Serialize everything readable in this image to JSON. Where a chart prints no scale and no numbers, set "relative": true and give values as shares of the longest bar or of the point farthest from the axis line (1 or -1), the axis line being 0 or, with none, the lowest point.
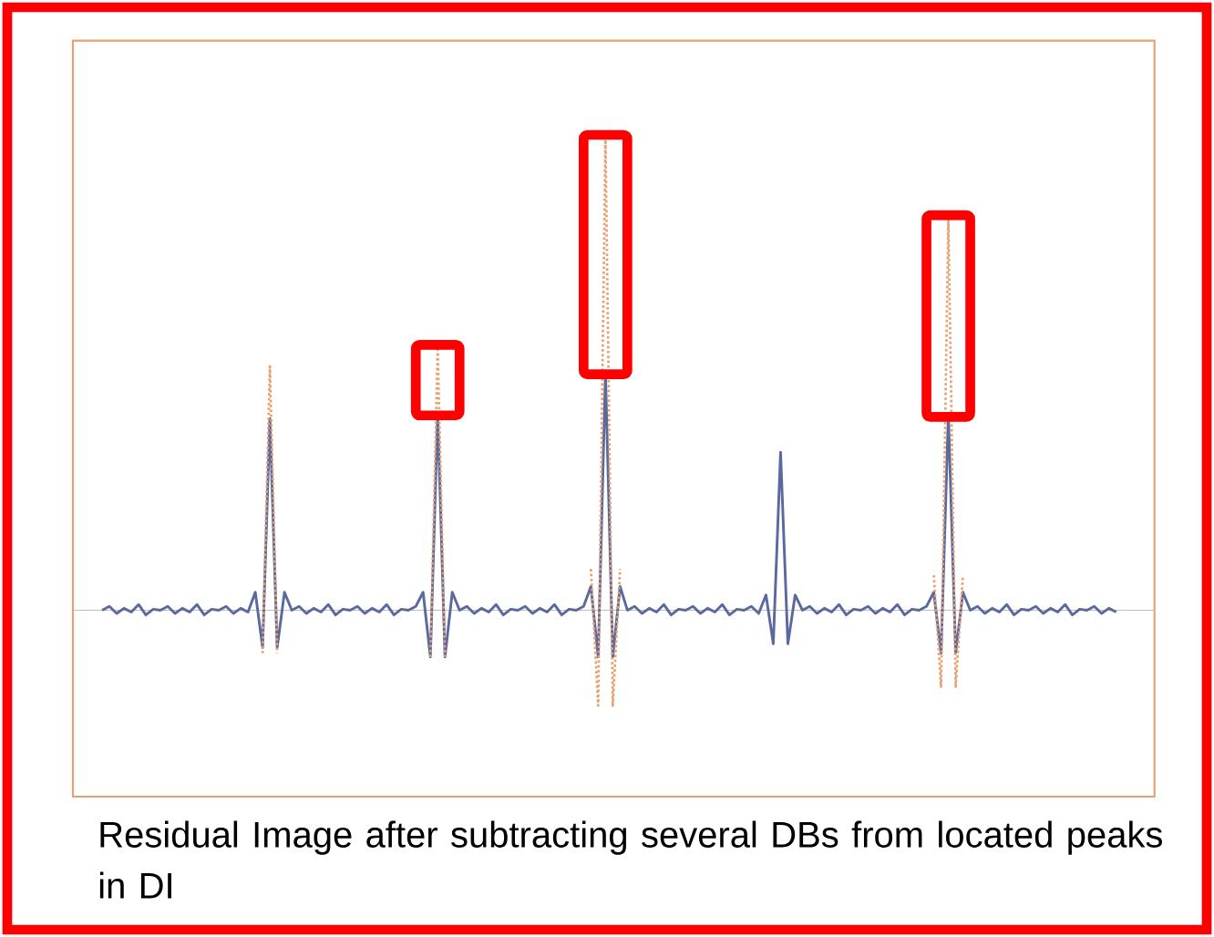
{
  "chart_data": {
    "type": "line",
    "relative": true,
    "marker": "none",
    "categories": [
      null,
      null,
      null,
      null,
      null,
      null,
      null,
      null,
      null,
      null,
      null,
      null,
      null,
      null,
      null,
      null,
      null,
      null,
      null,
      null,
      null,
      null,
      null,
      null,
      null,
      null,
      null,
      null,
      null,
      null,
      null,
      null,
      null,
      null,
      null,
      null,
      null,
      null,
      null,
      null,
      null,
      null,
      null,
      null,
      null,
      null,
      null,
      null,
      null,
      null,
      null,
      null,
      null,
      null,
      null,
      null,
      null,
      null,
      null,
      null,
      null,
      null,
      null,
      null,
      null,
      null,
      null,
      null,
      null,
      null,
      null,
      null,
      null,
      null,
      null,
      null,
      null,
      null,
      null,
      null,
      null,
      null,
      null,
      null,
      null,
      null,
      null,
      null,
      null,
      null,
      null,
      null,
      null,
      null,
      null,
      null,
      null,
      null,
      null,
      null,
      null,
      null,
      null,
      null,
      null,
      null,
      null,
      null,
      null,
      null,
      null,
      null,
      null,
      null,
      null,
      null,
      null,
      null,
      null,
      null,
      null,
      null,
      null,
      null,
      null,
      null,
      null,
      null,
      null,
      null,
      null,
      null,
      null,
      null,
      null,
      null,
      null,
      null,
      null,
      null
    ],
    "series": [
      {
        "color": "#5b6a9e",
        "line_style": "solid",
        "values": [
          0,
          0.008,
          -0.007,
          0.004,
          -0.004,
          0.012,
          -0.01,
          0.002,
          0,
          0.008,
          -0.007,
          0.004,
          -0.004,
          0.012,
          -0.01,
          0.002,
          0,
          0.008,
          -0.007,
          0.004,
          -0.004,
          0.038,
          -0.079,
          0.405,
          -0.079,
          0.038,
          0,
          0.008,
          -0.007,
          0.004,
          -0.004,
          0.012,
          -0.01,
          0.002,
          0,
          0.008,
          -0.007,
          0.004,
          -0.004,
          0.012,
          -0.01,
          0.002,
          0,
          0.008,
          0.038,
          -0.099,
          0.417,
          -0.099,
          0.038,
          0,
          0.008,
          -0.007,
          0.004,
          -0.004,
          0.012,
          -0.01,
          0.002,
          0,
          0.008,
          -0.007,
          0.004,
          -0.004,
          0.012,
          -0.01,
          0.002,
          0,
          0.008,
          0.05,
          -0.099,
          0.504,
          -0.099,
          0.05,
          0,
          0.008,
          -0.007,
          0.004,
          -0.004,
          0.012,
          -0.01,
          0.002,
          0,
          0.008,
          -0.007,
          0.004,
          -0.004,
          0.012,
          -0.01,
          0.002,
          0,
          0.008,
          -0.007,
          0.032,
          -0.071,
          0.334,
          -0.071,
          0.032,
          0,
          0.008,
          -0.007,
          0.004,
          -0.004,
          0.012,
          -0.01,
          0.002,
          0,
          0.008,
          -0.007,
          0.004,
          -0.004,
          0.012,
          -0.01,
          0.002,
          0,
          0.008,
          0.038,
          -0.091,
          0.414,
          -0.091,
          0.038,
          0,
          0.008,
          -0.007,
          0.004,
          -0.004,
          0.012,
          -0.01,
          0.002,
          0,
          0.008,
          -0.007,
          0.004,
          -0.004,
          0.012,
          -0.01,
          0.002,
          0,
          0.008,
          -0.007,
          0.004,
          -0.004
        ]
      },
      {
        "color": "#e8a070",
        "line_style": "dotted",
        "values": [
          null,
          null,
          null,
          null,
          null,
          null,
          null,
          null,
          null,
          null,
          null,
          null,
          null,
          null,
          null,
          null,
          null,
          null,
          null,
          null,
          null,
          null,
          -0.091,
          0.516,
          -0.091,
          null,
          null,
          null,
          null,
          null,
          null,
          null,
          null,
          null,
          null,
          null,
          null,
          null,
          null,
          null,
          null,
          null,
          null,
          null,
          null,
          -0.099,
          0.556,
          -0.099,
          null,
          null,
          null,
          null,
          null,
          null,
          null,
          null,
          null,
          null,
          null,
          null,
          null,
          null,
          null,
          null,
          null,
          null,
          null,
          0.087,
          -0.202,
          1,
          -0.202,
          0.087,
          null,
          null,
          null,
          null,
          null,
          null,
          null,
          null,
          null,
          null,
          null,
          null,
          null,
          null,
          null,
          null,
          null,
          null,
          null,
          null,
          null,
          null,
          null,
          null,
          null,
          null,
          null,
          null,
          null,
          null,
          null,
          null,
          null,
          null,
          null,
          null,
          null,
          null,
          null,
          null,
          null,
          null,
          0.074,
          -0.162,
          0.83,
          -0.162,
          0.074,
          null,
          null,
          null,
          null,
          null,
          null,
          null,
          null,
          null,
          null,
          null,
          null,
          null,
          null,
          null,
          null,
          null,
          null,
          null,
          null,
          null
        ]
      }
    ],
    "annotations": [
      "Residual Image after subtracting several DBs from located peaks in DI"
    ]
  }
}
